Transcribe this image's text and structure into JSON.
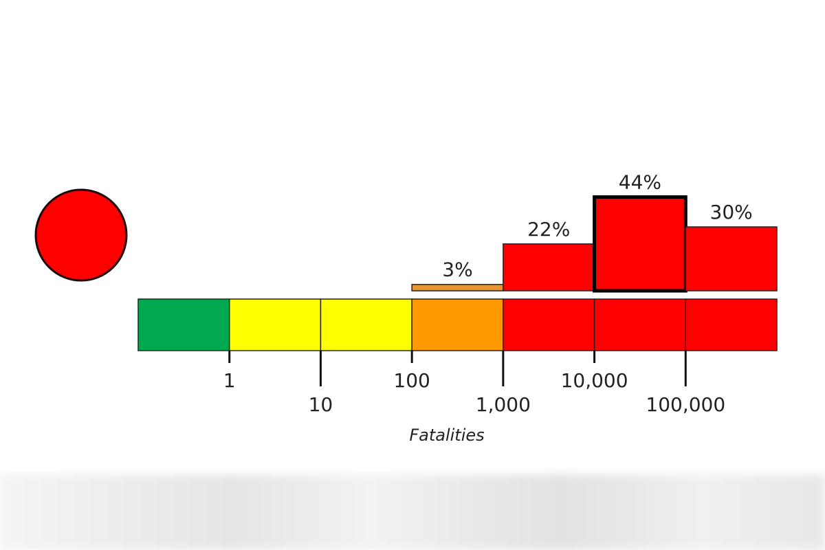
{
  "chart_data": {
    "type": "histogram",
    "x_label": "Fatalities",
    "bins": [
      0.1,
      1,
      10,
      100,
      1000,
      10000,
      100000,
      1000000
    ],
    "values": [
      0,
      0,
      0,
      3,
      22,
      44,
      30
    ],
    "value_labels": [
      null,
      null,
      null,
      "3%",
      "22%",
      "44%",
      "30%"
    ],
    "bar_colors": [
      "#00a84f",
      "#ffff00",
      "#ffff00",
      "#e8952f",
      "#ff0000",
      "#ff0000",
      "#ff0000"
    ],
    "scale_colors": [
      "#00a84f",
      "#ffff00",
      "#ffff00",
      "#ff9900",
      "#ff0000",
      "#ff0000",
      "#ff0000"
    ],
    "highlight_index": 5,
    "alert_color": "#ff0000",
    "xscale": "log",
    "xlim": [
      0.1,
      1000000
    ],
    "xticks": [
      1,
      10,
      100,
      {
        "value": 1000,
        "label": "1,000"
      },
      {
        "value": 10000,
        "label": "10,000"
      },
      {
        "value": 100000,
        "label": "100,000"
      }
    ],
    "ylim": [
      0,
      50
    ]
  }
}
